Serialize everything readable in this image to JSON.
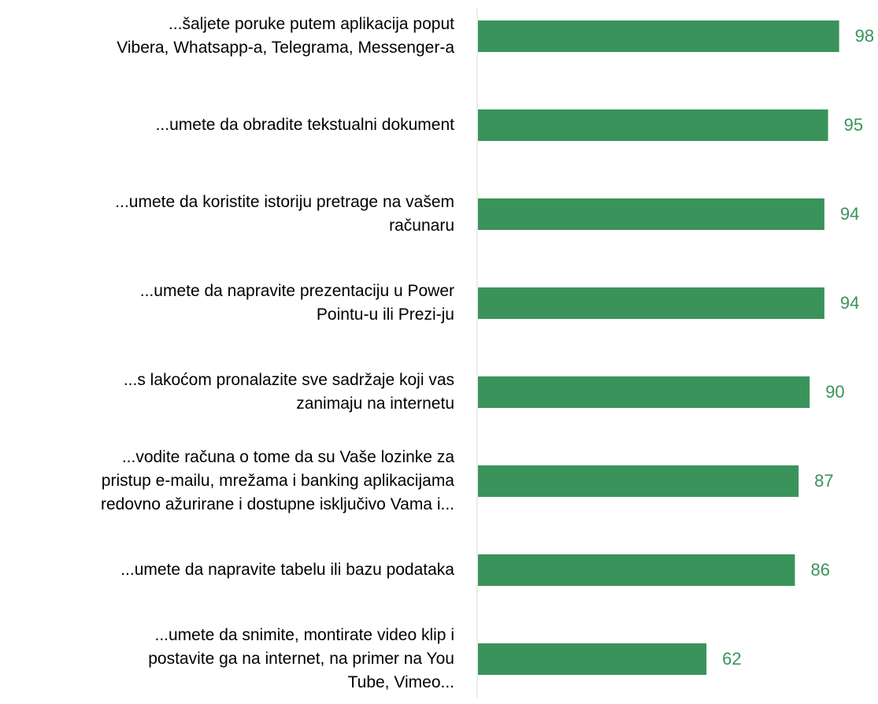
{
  "chart_data": {
    "type": "barh",
    "categories": [
      "...šaljete poruke putem aplikacija poput\nVibera, Whatsapp-a, Telegrama, Messenger-a",
      "...umete da obradite tekstualni dokument",
      "...umete da koristite istoriju pretrage na vašem\nračunaru",
      "...umete da napravite prezentaciju u Power\nPointu-u ili Prezi-ju",
      "...s lakoćom pronalazite sve sadržaje koji vas\nzanimaju na internetu",
      "...vodite računa o tome da su Vaše lozinke za\npristup e-mailu, mrežama i banking aplikacijama\nredovno ažurirane i dostupne isključivo Vama i...",
      "...umete da napravite tabelu ili bazu podataka",
      "...umete da snimite, montirate video klip i\npostavite ga na internet, na primer na You\nTube, Vimeo..."
    ],
    "values": [
      98,
      95,
      94,
      94,
      90,
      87,
      86,
      62
    ],
    "color": "#3a935a",
    "xlim": [
      0,
      100
    ]
  }
}
